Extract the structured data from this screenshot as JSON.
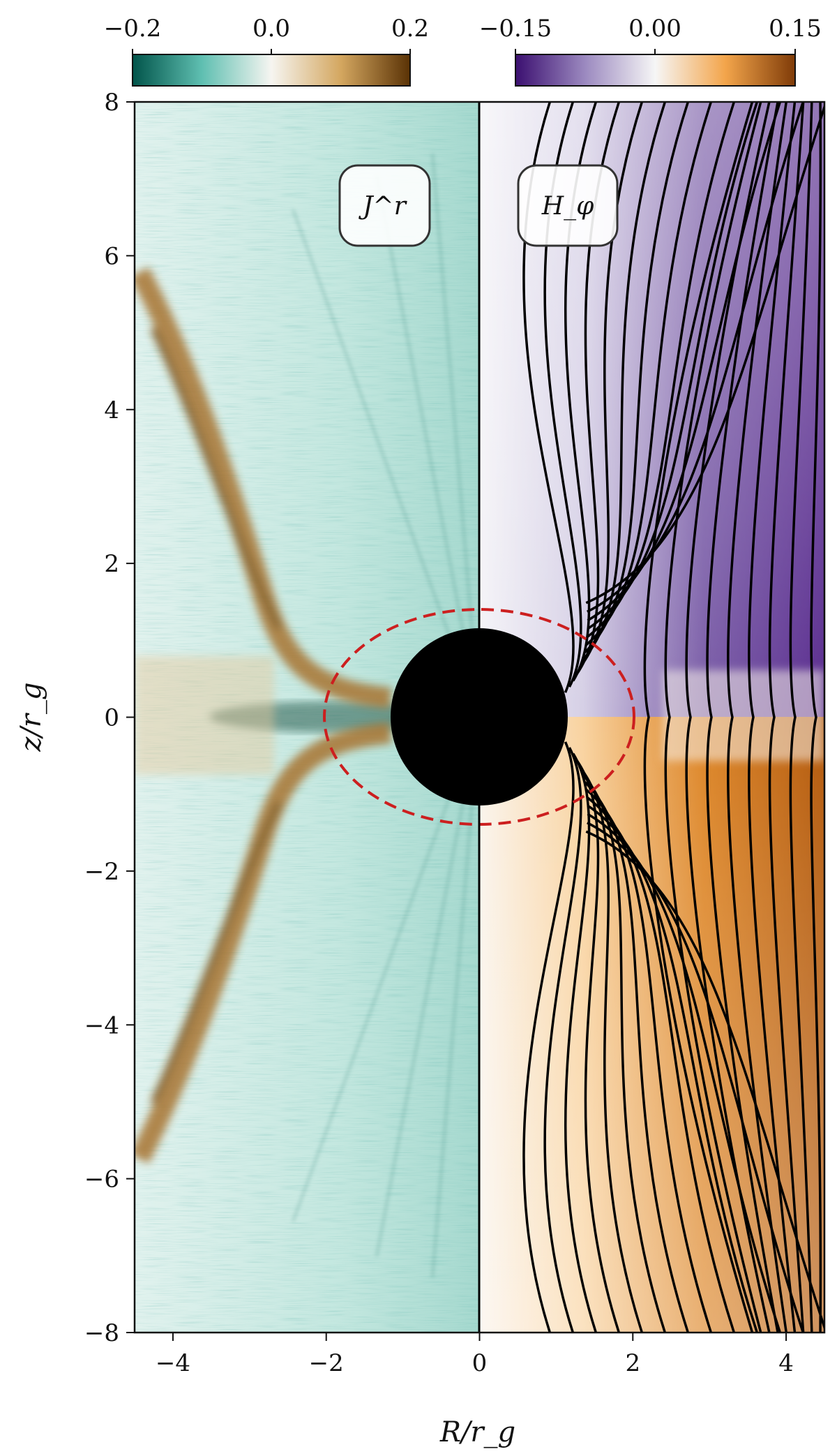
{
  "chart_data": {
    "type": "heatmap",
    "title": "",
    "xlabel": "R/r_g",
    "ylabel": "z/r_g",
    "xlim": [
      -4.5,
      4.5
    ],
    "ylim": [
      -8,
      8
    ],
    "xticks": [
      "−4",
      "−2",
      "0",
      "2",
      "4"
    ],
    "yticks": [
      "8",
      "6",
      "4",
      "2",
      "0",
      "−2",
      "−4",
      "−6",
      "−8"
    ],
    "panels": [
      {
        "label": "J^r",
        "side": "left",
        "colormap": "BrBG_r",
        "colorbar": {
          "range": [
            -0.2,
            0.2
          ],
          "ticks": [
            "−0.2",
            "0.0",
            "0.2"
          ]
        }
      },
      {
        "label": "H_φ",
        "side": "right",
        "colormap": "PuOr_r",
        "colorbar": {
          "range": [
            -0.15,
            0.15
          ],
          "ticks": [
            "−0.15",
            "0.00",
            "0.15"
          ]
        },
        "contours": "field lines"
      }
    ],
    "black_hole": {
      "center": [
        0,
        0
      ],
      "radius": 1.15
    },
    "ergosphere": {
      "style": "dashed",
      "color": "#cc1f1f",
      "equatorial_radius": 2.0,
      "polar_radius": 1.15
    }
  }
}
